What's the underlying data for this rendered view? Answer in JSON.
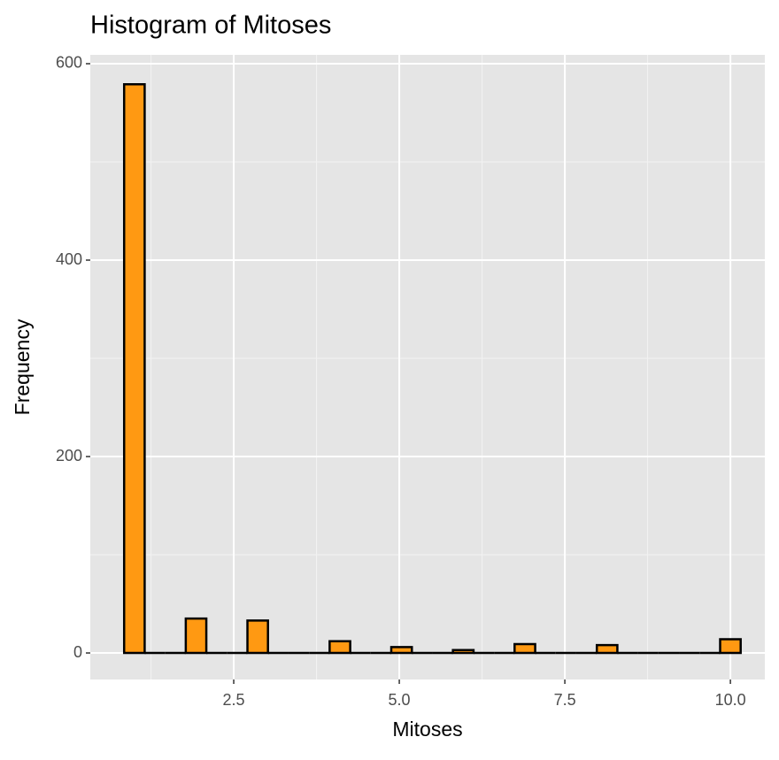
{
  "chart_data": {
    "type": "histogram",
    "title": "Histogram of Mitoses",
    "x_label": "Mitoses",
    "y_label": "Frequency",
    "bins": [
      0.845,
      1.155,
      1.466,
      1.776,
      2.086,
      2.397,
      2.707,
      3.017,
      3.328,
      3.638,
      3.948,
      4.259,
      4.569,
      4.879,
      5.19,
      5.5,
      5.81,
      6.121,
      6.431,
      6.741,
      7.052,
      7.362,
      7.672,
      7.983,
      8.293,
      8.603,
      8.914,
      9.224,
      9.534,
      9.845,
      10.155
    ],
    "values": [
      579,
      0,
      0,
      35,
      0,
      0,
      33,
      0,
      0,
      0,
      12,
      0,
      0,
      6,
      0,
      0,
      3,
      0,
      0,
      9,
      0,
      0,
      0,
      8,
      0,
      0,
      0,
      0,
      0,
      14
    ],
    "color": "#ff9912",
    "edgecolor": "#000000",
    "xlim": [
      0.334,
      10.52
    ],
    "ylim": [
      -27,
      609
    ],
    "xticks": [
      2.5,
      {
        "value": 5,
        "label": "5.0"
      },
      7.5,
      {
        "value": 10,
        "label": "10.0"
      }
    ],
    "yticks": [
      0,
      200,
      400,
      600
    ],
    "grid": true
  }
}
